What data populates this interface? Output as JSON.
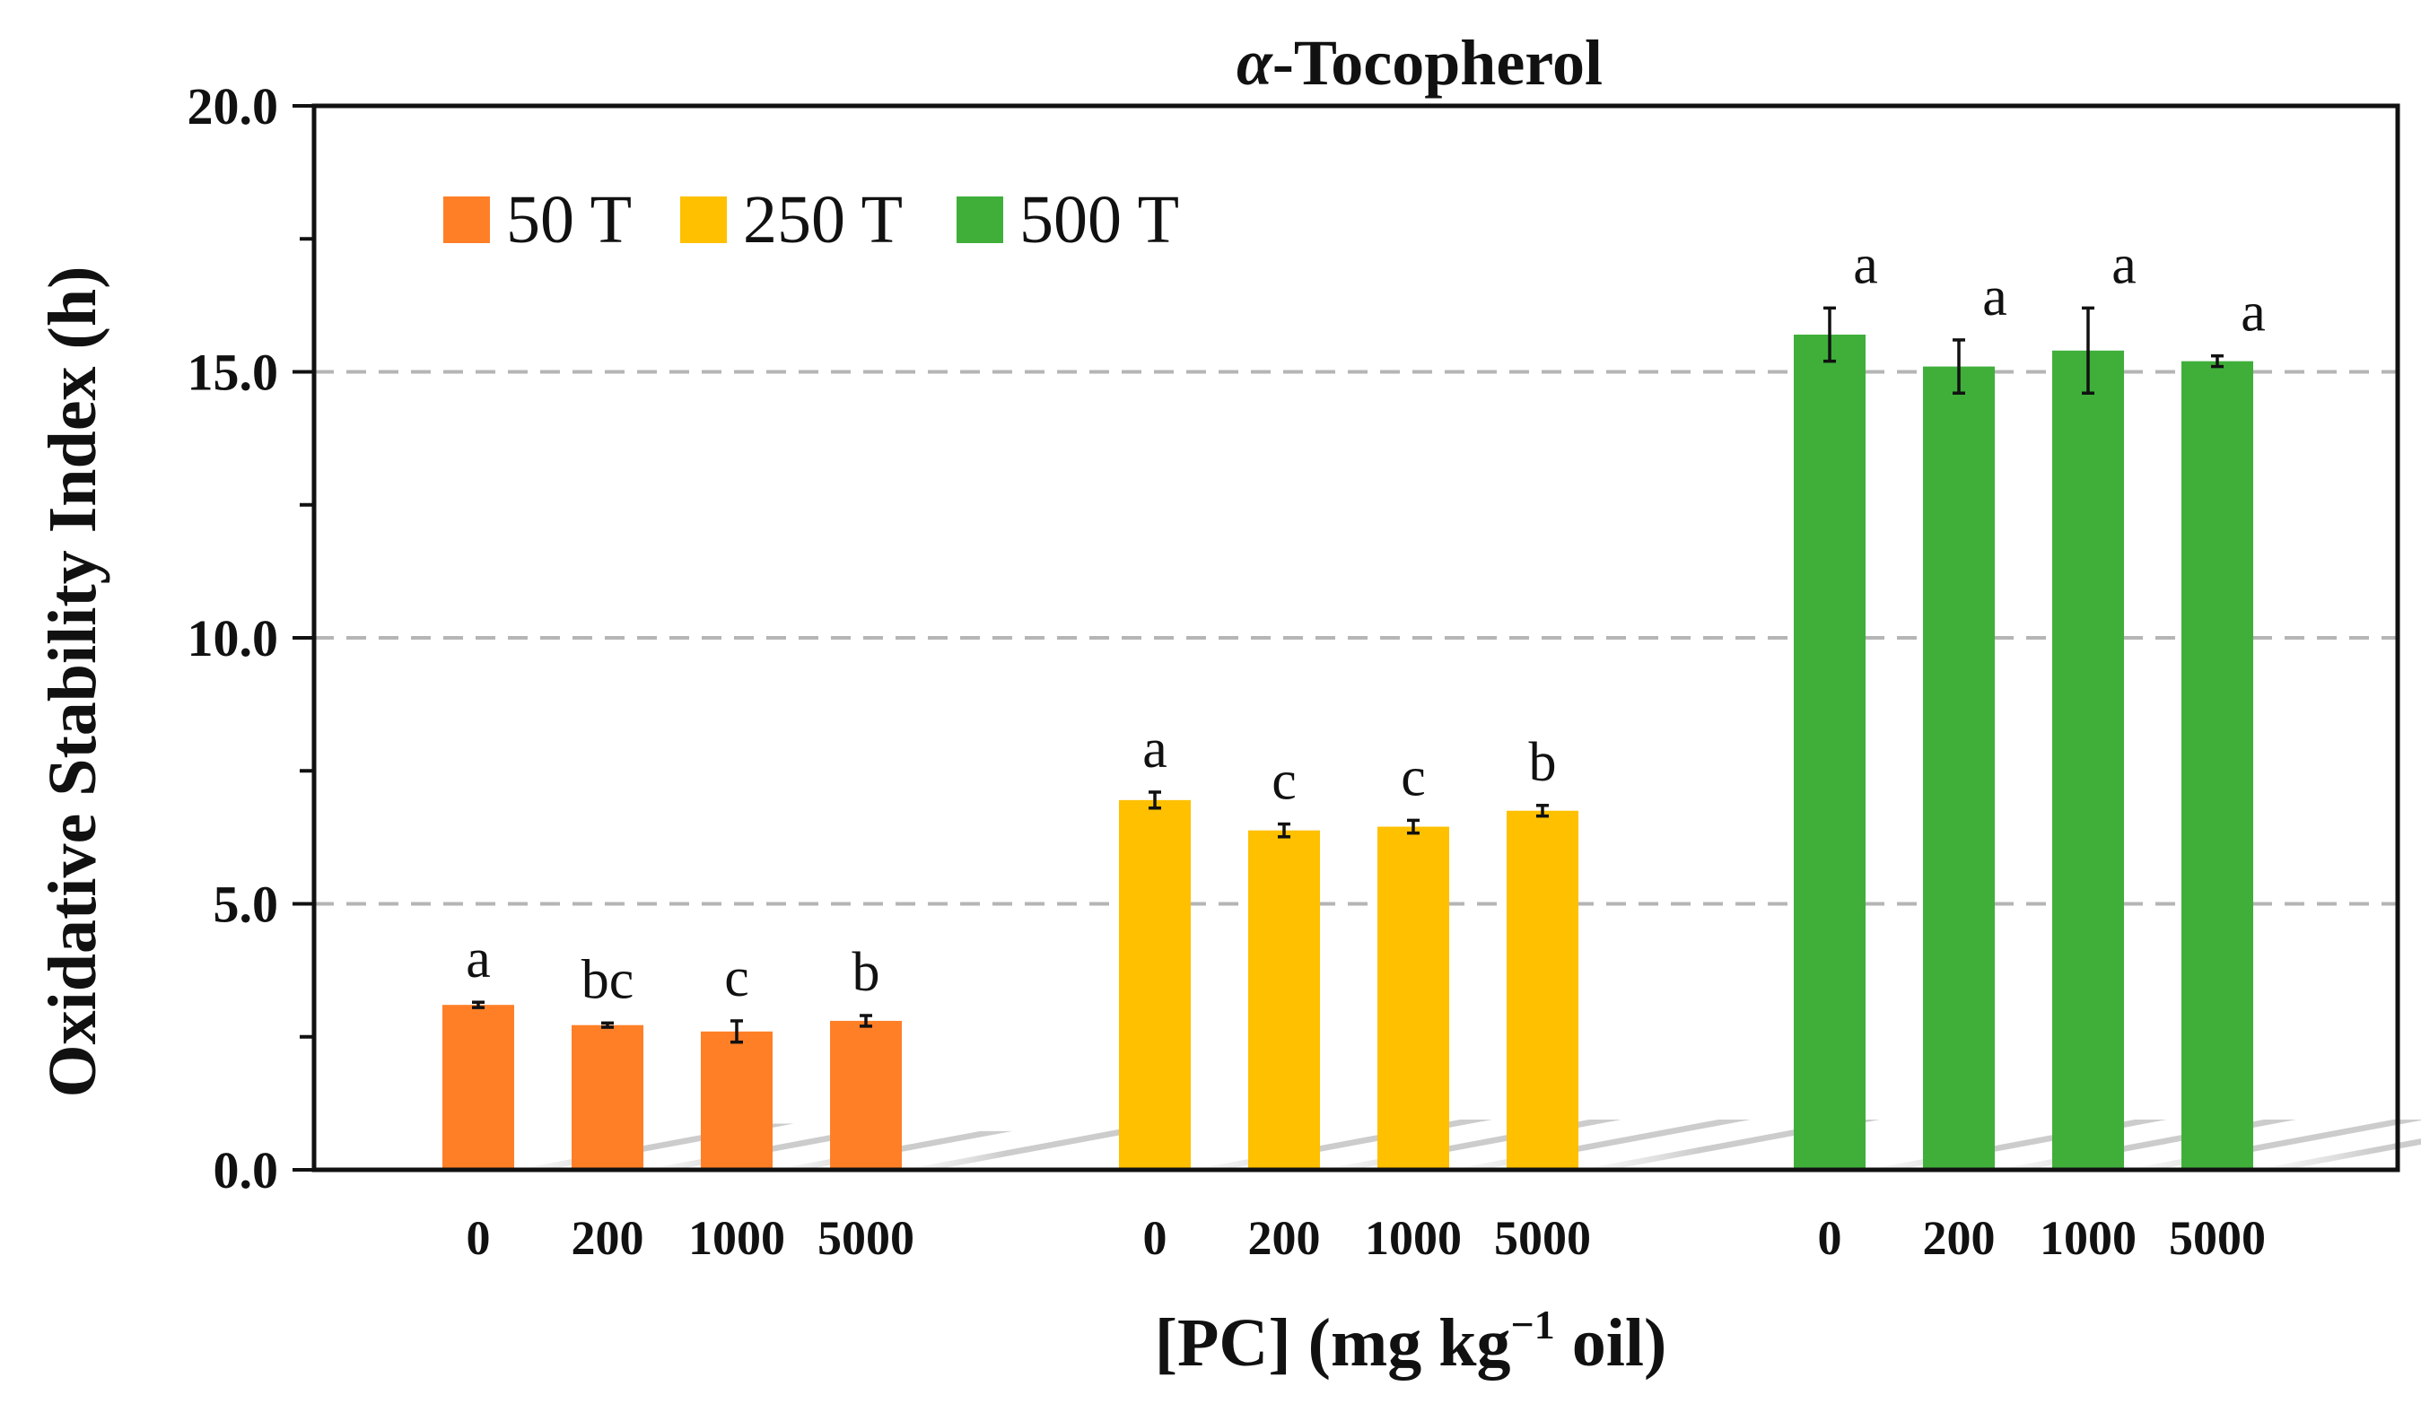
{
  "chart_data": {
    "type": "bar",
    "title_greek": "α",
    "title_rest": "-Tocopherol",
    "ylabel": "Oxidative Stability Index (h)",
    "xlabel_main": "[PC] (mg kg",
    "xlabel_sup": "−1",
    "xlabel_tail": " oil)",
    "ylim": [
      0,
      20
    ],
    "yticks": [
      "0.0",
      "5.0",
      "10.0",
      "15.0",
      "20.0"
    ],
    "ytick_values": [
      0,
      5,
      10,
      15,
      20
    ],
    "gridlines": [
      5,
      10,
      15
    ],
    "legend_position": "top-left",
    "categories": [
      "0",
      "200",
      "1000",
      "5000"
    ],
    "series": [
      {
        "name": "50 T",
        "color": "#FF7F27",
        "values": [
          3.1,
          2.72,
          2.6,
          2.8
        ],
        "errors": [
          0.05,
          0.04,
          0.2,
          0.1
        ],
        "letters": [
          "a",
          "bc",
          "c",
          "b"
        ]
      },
      {
        "name": "250 T",
        "color": "#FFC000",
        "values": [
          6.95,
          6.38,
          6.45,
          6.75
        ],
        "errors": [
          0.15,
          0.12,
          0.12,
          0.1
        ],
        "letters": [
          "a",
          "c",
          "c",
          "b"
        ]
      },
      {
        "name": "500 T",
        "color": "#3FAF3A",
        "values": [
          15.7,
          15.1,
          15.4,
          15.2
        ],
        "errors": [
          0.5,
          0.5,
          0.8,
          0.1
        ],
        "letters": [
          "a",
          "a",
          "a",
          "a"
        ]
      }
    ]
  }
}
